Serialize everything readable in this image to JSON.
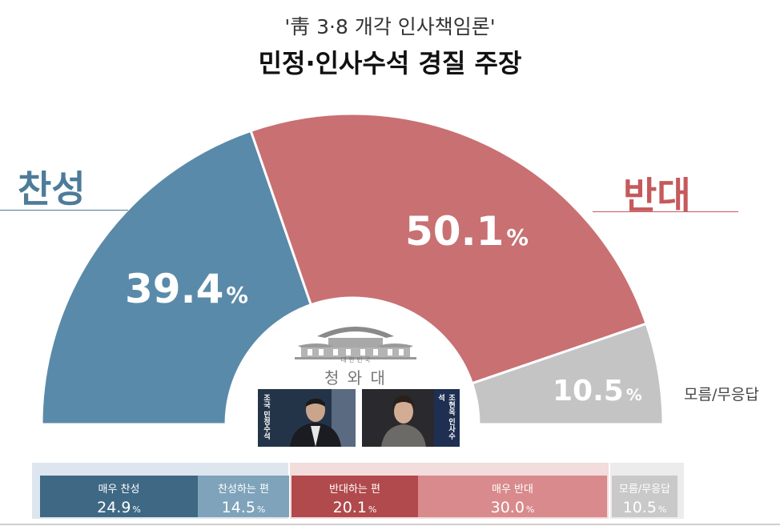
{
  "header": {
    "subtitle": "'靑 3·8 개각 인사책임론'",
    "title": "민정·인사수석 경질 주장"
  },
  "chart_data": {
    "type": "pie",
    "style": "semicircle donut",
    "slices": [
      {
        "label": "찬성",
        "value": 39.4,
        "display": "39.4",
        "color": "#5a8aaa"
      },
      {
        "label": "반대",
        "value": 50.1,
        "display": "50.1",
        "color": "#c97072"
      },
      {
        "label": "모름/무응답",
        "value": 10.5,
        "display": "10.5",
        "color": "#c4c4c4"
      }
    ],
    "unit": "%",
    "breakdown": [
      {
        "label": "매우 찬성",
        "value": 24.9,
        "display": "24.9",
        "color": "#3e6884"
      },
      {
        "label": "찬성하는 편",
        "value": 14.5,
        "display": "14.5",
        "color": "#7fa3ba"
      },
      {
        "label": "반대하는 편",
        "value": 20.1,
        "display": "20.1",
        "color": "#b14a4d"
      },
      {
        "label": "매우 반대",
        "value": 30.0,
        "display": "30.0",
        "color": "#d98a8c"
      },
      {
        "label": "모름/무응답",
        "value": 10.5,
        "display": "10.5",
        "color": "#c9c9c9"
      }
    ]
  },
  "logo": {
    "small_text": "대 한 민 국",
    "name": "청 와 대"
  },
  "photos": [
    {
      "name": "조국 민정수석"
    },
    {
      "name": "조현옥 인사수석"
    }
  ]
}
